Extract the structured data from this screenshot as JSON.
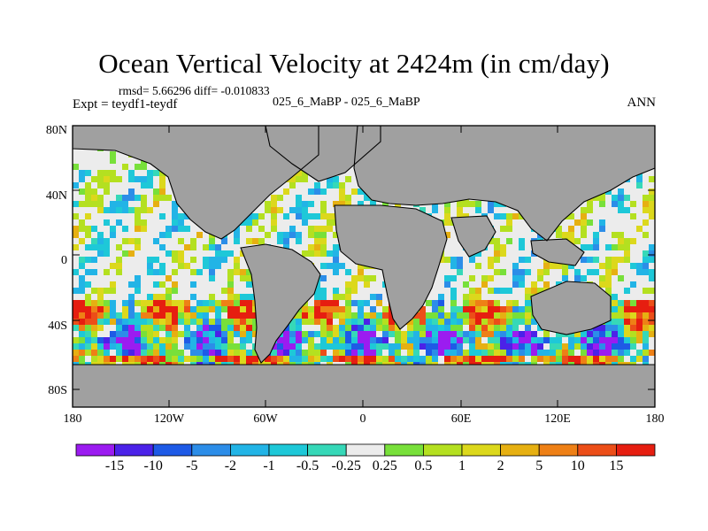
{
  "header": {
    "title": "Ocean Vertical Velocity at 2424m (in cm/day)",
    "stats": "rmsd= 5.66296   diff= -0.010833",
    "expt": "Expt = teydf1-teydf",
    "case": "025_6_MaBP - 025_6_MaBP",
    "season": "ANN"
  },
  "axes": {
    "y_labels": [
      "80N",
      "40N",
      "0",
      "40S",
      "80S"
    ],
    "x_labels": [
      "180",
      "120W",
      "60W",
      "0",
      "60E",
      "120E",
      "180"
    ]
  },
  "colorbar": {
    "labels": [
      "-15",
      "-10",
      "-5",
      "-2",
      "-1",
      "-0.5",
      "-0.25",
      "0.25",
      "0.5",
      "1",
      "2",
      "5",
      "10",
      "15"
    ],
    "colors": [
      "#9b1cf0",
      "#4b22e8",
      "#1e5ae6",
      "#2c8de8",
      "#22b4e6",
      "#1ec8d8",
      "#36d8b8",
      "#ececec",
      "#78e03a",
      "#b4e020",
      "#dcd81c",
      "#e6b012",
      "#ee8016",
      "#ec4e18",
      "#e61e10"
    ]
  },
  "map": {
    "land_color": "#a0a0a0",
    "no_data_color": "#ffffff"
  }
}
